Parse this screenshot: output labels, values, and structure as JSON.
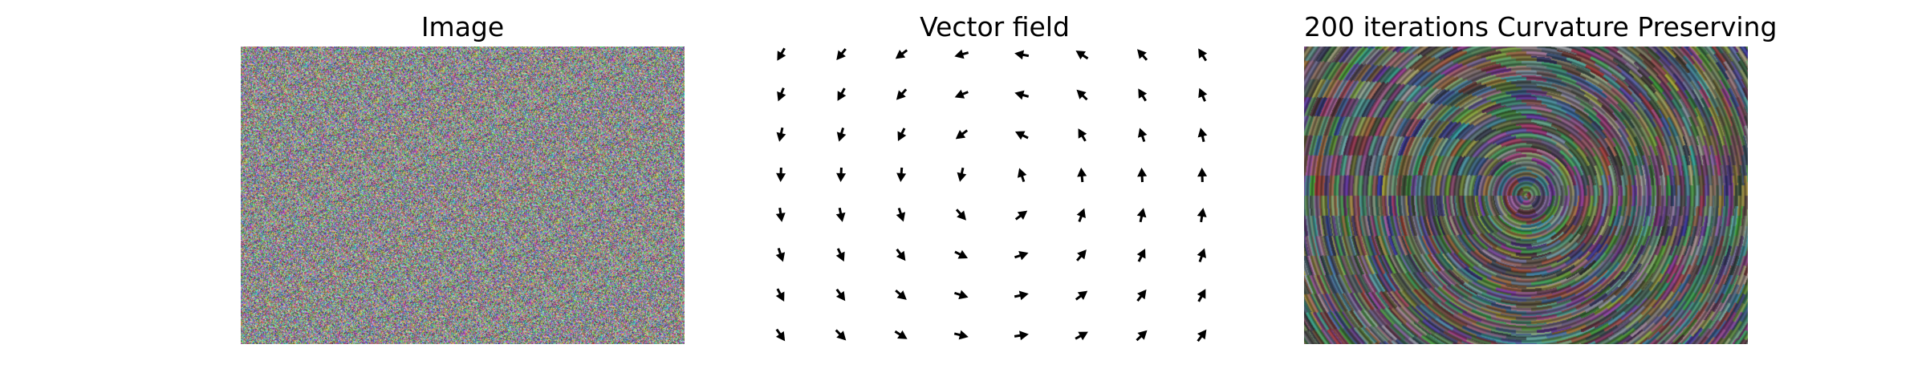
{
  "figure": {
    "panels": [
      {
        "title": "Image",
        "content": "random-color-noise"
      },
      {
        "title": "Vector field",
        "content": "rotational-vector-field"
      },
      {
        "title": "200 iterations Curvature Preserving",
        "content": "circular-smoothed-noise"
      }
    ],
    "vector_field": {
      "grid": {
        "cols": 8,
        "rows": 8
      },
      "rotation": "counterclockwise",
      "arrow_color": "#000000"
    }
  }
}
